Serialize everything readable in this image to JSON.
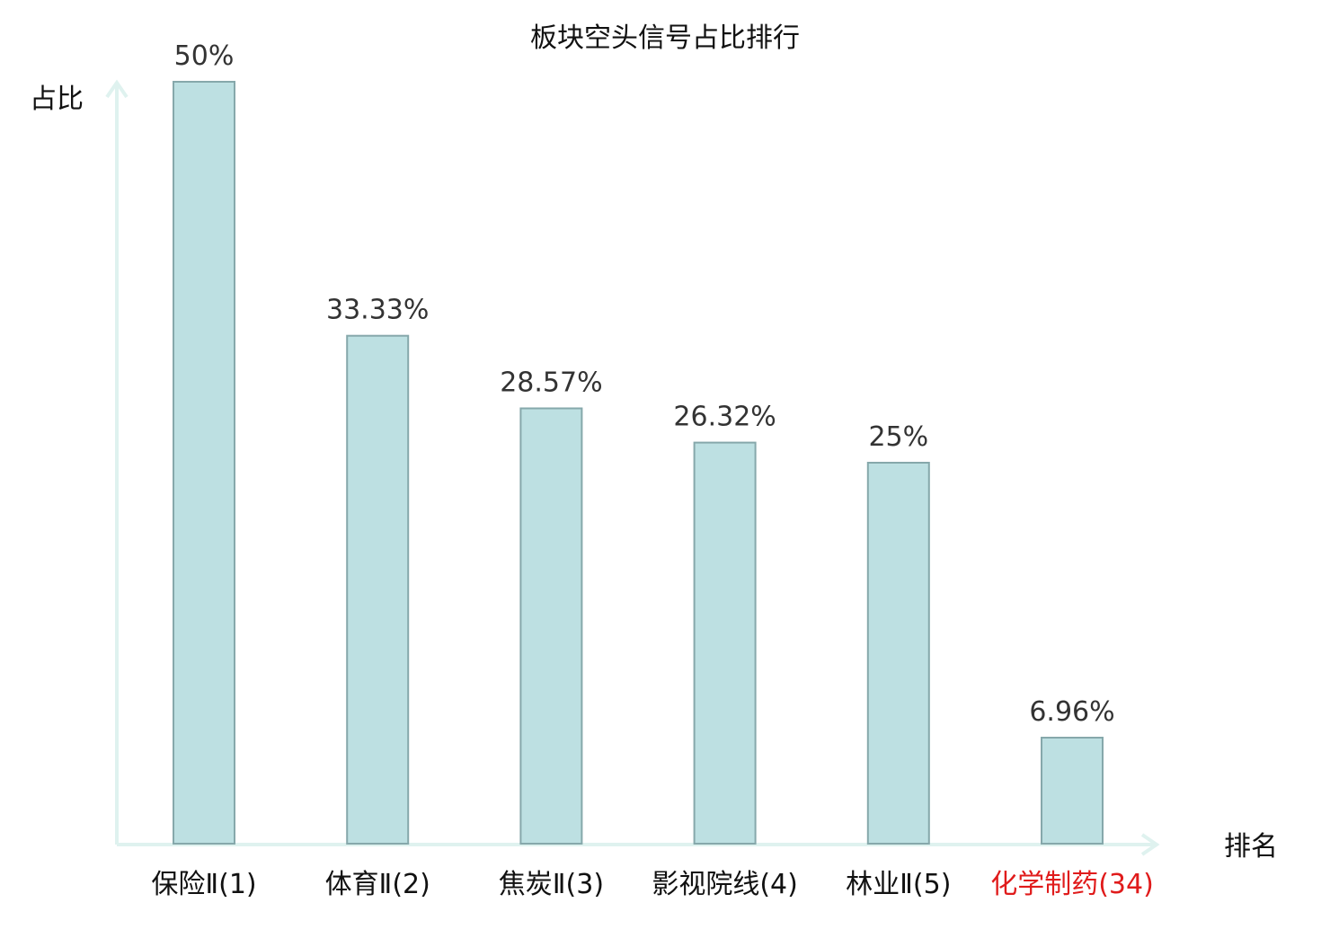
{
  "chart_data": {
    "type": "bar",
    "title": "板块空头信号占比排行",
    "ylabel": "占比",
    "xlabel": "排名",
    "categories": [
      "保险Ⅱ(1)",
      "体育Ⅱ(2)",
      "焦炭Ⅱ(3)",
      "影视院线(4)",
      "林业Ⅱ(5)",
      "化学制药(34)"
    ],
    "values": [
      50,
      33.33,
      28.57,
      26.32,
      25,
      6.96
    ],
    "value_labels": [
      "50%",
      "33.33%",
      "28.57%",
      "26.32%",
      "25%",
      "6.96%"
    ],
    "highlight_index": 5,
    "ylim": [
      0,
      50
    ],
    "grid": false,
    "legend": "none"
  },
  "colors": {
    "bar_fill": "#bde0e2",
    "bar_stroke": "#86a8ab",
    "axis": "#dff2ef",
    "text": "#111111",
    "value_text": "#333333",
    "highlight": "#e01b1b"
  }
}
